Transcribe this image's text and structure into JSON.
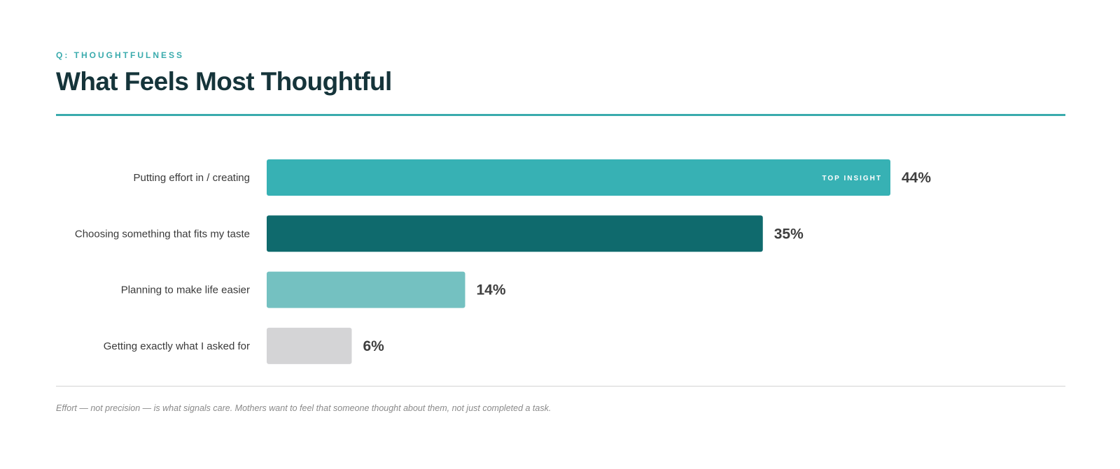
{
  "header": {
    "eyebrow": "Q: THOUGHTFULNESS",
    "title": "What Feels Most Thoughtful"
  },
  "chart_data": {
    "type": "bar",
    "orientation": "horizontal",
    "title": "What Feels Most Thoughtful",
    "categories": [
      "Putting effort in / creating",
      "Choosing something that fits my taste",
      "Planning to make life easier",
      "Getting exactly what I asked for"
    ],
    "values": [
      44,
      35,
      14,
      6
    ],
    "value_suffix": "%",
    "colors": [
      "#37b1b4",
      "#0f6a6d",
      "#74c1c1",
      "#d4d4d6"
    ],
    "annotation": {
      "category_index": 0,
      "text": "TOP INSIGHT"
    },
    "xlim": [
      0,
      44
    ],
    "xlabel": "",
    "ylabel": "",
    "grid": false
  },
  "footer": {
    "note": "Effort — not precision — is what signals care. Mothers want to feel that someone thought about them, not just completed a task."
  }
}
